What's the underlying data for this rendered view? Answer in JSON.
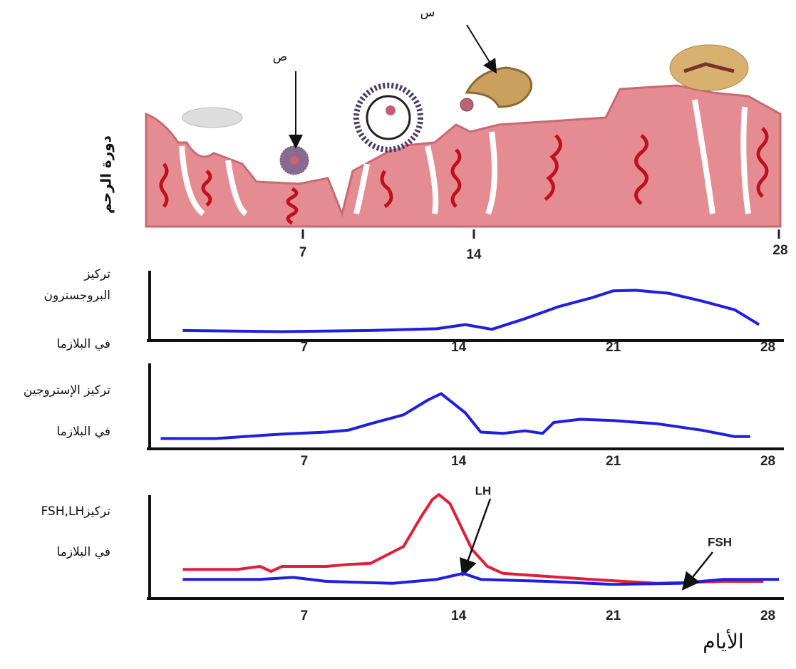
{
  "uterus_diagram": {
    "ylabel": "دورة الرحم",
    "label_top": "س",
    "label_left": "ص",
    "ticks": [
      "7",
      "14",
      "28"
    ]
  },
  "chart_data": [
    {
      "type": "line",
      "ylabel": [
        "تركيز",
        "البروجسترون",
        "في البلازما"
      ],
      "xlim": [
        0,
        28.5
      ],
      "ylim": [
        0,
        100
      ],
      "xticks": [
        7,
        14,
        21,
        28
      ],
      "series": [
        {
          "color": "#1f1fe0",
          "x": [
            1.5,
            6,
            10,
            13,
            14.3,
            15.5,
            17,
            18.5,
            20,
            21,
            22,
            23.5,
            25,
            26.5,
            27.6
          ],
          "values": [
            5,
            3,
            5,
            8,
            15,
            7,
            25,
            45,
            60,
            72,
            73,
            68,
            55,
            40,
            15
          ]
        }
      ]
    },
    {
      "type": "line",
      "ylabel": [
        "تركيز الإستروجين",
        "في البلازما"
      ],
      "xlim": [
        0,
        28.5
      ],
      "ylim": [
        0,
        100
      ],
      "xticks": [
        7,
        14,
        21,
        28
      ],
      "series": [
        {
          "color": "#1f1fe0",
          "x": [
            0.5,
            3,
            6,
            8,
            9,
            10,
            11.5,
            12.6,
            13.2,
            14.3,
            15,
            16,
            17,
            17.8,
            18.3,
            19.5,
            21,
            23,
            25,
            26.5,
            27.2
          ],
          "values": [
            5,
            5,
            12,
            15,
            18,
            28,
            42,
            65,
            75,
            45,
            15,
            13,
            17,
            13,
            30,
            35,
            33,
            28,
            18,
            8,
            8
          ]
        }
      ]
    },
    {
      "type": "line",
      "ylabel": [
        "تركيزFSH,LH",
        "في البلازما"
      ],
      "xlim": [
        0,
        28.5
      ],
      "ylim": [
        0,
        100
      ],
      "xticks": [
        7,
        14,
        21,
        28
      ],
      "series": [
        {
          "name": "LH",
          "color": "#e0203a",
          "x": [
            1.5,
            4,
            5,
            5.5,
            6,
            8,
            9,
            10,
            11.5,
            12.3,
            12.8,
            13.1,
            13.6,
            14.1,
            14.6,
            15.3,
            16,
            20,
            23,
            26,
            27.8
          ],
          "values": [
            22,
            22,
            25,
            20,
            25,
            25,
            27,
            28,
            45,
            75,
            92,
            97,
            88,
            65,
            42,
            25,
            18,
            12,
            8,
            10,
            10
          ]
        },
        {
          "name": "FSH",
          "color": "#1f1fe0",
          "x": [
            1.5,
            5,
            6.5,
            8,
            11,
            13,
            14.2,
            15,
            18,
            21,
            24,
            26,
            28.5
          ],
          "values": [
            12,
            12,
            14,
            10,
            8,
            12,
            18,
            12,
            10,
            7,
            8,
            12,
            12
          ]
        }
      ]
    }
  ],
  "days_label": "الأيام"
}
